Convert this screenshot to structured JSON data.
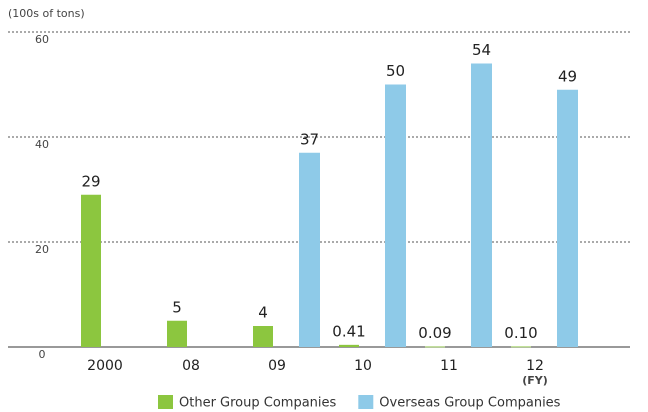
{
  "chart_data": {
    "type": "bar",
    "ylabel": "(100s of tons)",
    "xlabel": "(FY)",
    "categories": [
      "2000",
      "08",
      "09",
      "10",
      "11",
      "12"
    ],
    "series": [
      {
        "name": "Other Group Companies",
        "color": "#8cc63f",
        "values": [
          29,
          5,
          4,
          0.41,
          0.09,
          0.1
        ],
        "value_labels": [
          "29",
          "5",
          "4",
          "0.41",
          "0.09",
          "0.10"
        ]
      },
      {
        "name": "Overseas Group Companies",
        "color": "#8ecae8",
        "values": [
          null,
          null,
          37,
          50,
          54,
          49
        ]
      }
    ],
    "ylim": [
      0,
      60
    ],
    "yticks": [
      0,
      20,
      40,
      60
    ],
    "grid": true,
    "legend": "bottom"
  }
}
